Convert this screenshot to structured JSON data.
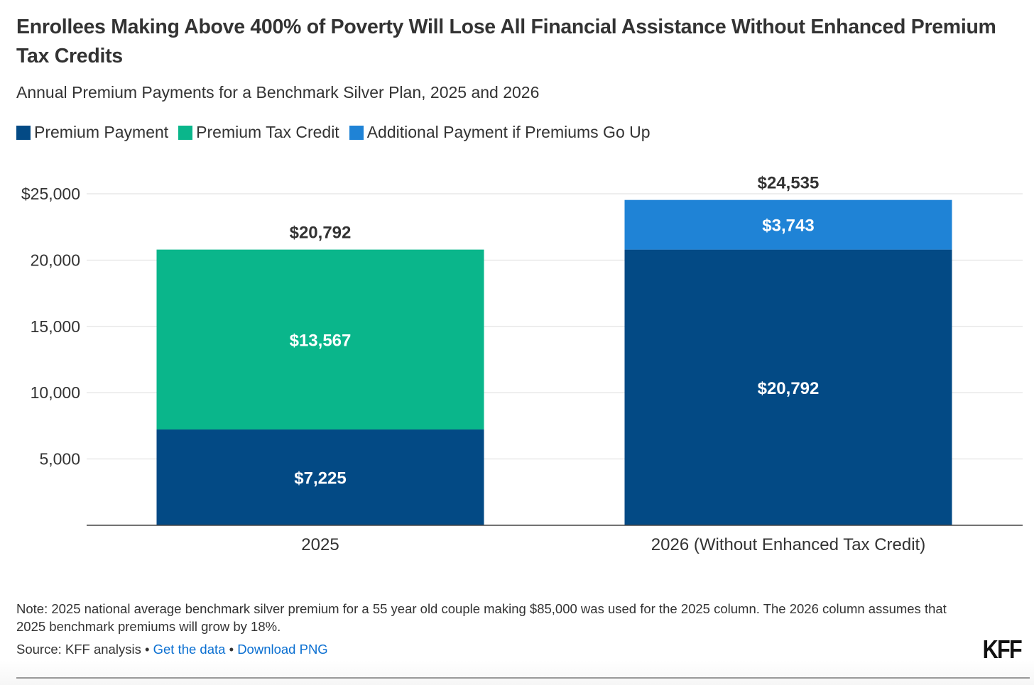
{
  "title": "Enrollees Making Above 400% of Poverty Will Lose All Financial Assistance Without Enhanced Premium Tax Credits",
  "subtitle": "Annual Premium Payments for a Benchmark Silver Plan, 2025 and 2026",
  "note": "Note: 2025 national average benchmark silver premium for a 55 year old couple making $85,000 was used for the 2025 column. The 2026 column assumes that 2025 benchmark premiums will grow by 18%.",
  "source": {
    "prefix": "Source: KFF analysis",
    "sep": "•",
    "get_data": "Get the data",
    "download": "Download PNG"
  },
  "logo": "KFF",
  "chart_data": {
    "type": "bar",
    "stacked": true,
    "title": "Enrollees Making Above 400% of Poverty Will Lose All Financial Assistance Without Enhanced Premium Tax Credits",
    "categories": [
      "2025",
      "2026 (Without Enhanced Tax Credit)"
    ],
    "series": [
      {
        "name": "Premium Payment",
        "color": "#034a85",
        "values": [
          7225,
          20792
        ],
        "labels": [
          "$7,225",
          "$20,792"
        ]
      },
      {
        "name": "Premium Tax Credit",
        "color": "#0ab68b",
        "values": [
          13567,
          0
        ],
        "labels": [
          "$13,567",
          ""
        ]
      },
      {
        "name": "Additional Payment if Premiums Go Up",
        "color": "#1f83d6",
        "values": [
          0,
          3743
        ],
        "labels": [
          "",
          "$3,743"
        ]
      }
    ],
    "totals": [
      "$20,792",
      "$24,535"
    ],
    "yticks": [
      5000,
      10000,
      15000,
      20000,
      25000
    ],
    "ytick_labels": [
      "5,000",
      "10,000",
      "15,000",
      "20,000",
      "$25,000"
    ],
    "ylim": [
      0,
      25000
    ],
    "xlabel": "",
    "ylabel": "",
    "grid": true,
    "legend": "top-left"
  }
}
